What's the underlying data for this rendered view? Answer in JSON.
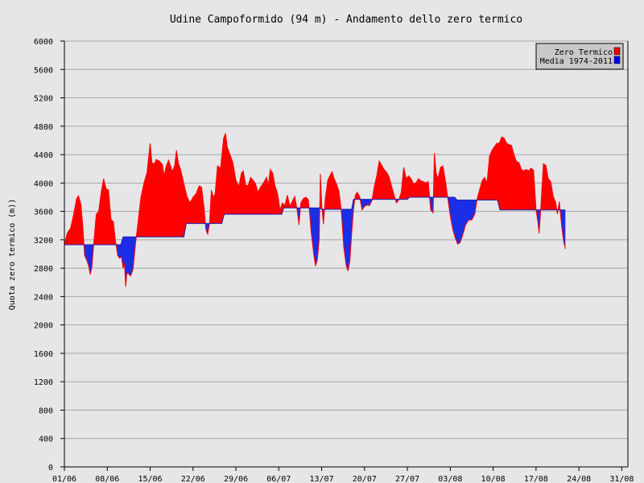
{
  "chart_data": {
    "type": "area",
    "title": "Udine Campoformido (94 m) - Andamento dello zero termico",
    "xlabel": "",
    "ylabel": "Quota zero termico (m))",
    "ylim": [
      0,
      6000
    ],
    "yticks": [
      0,
      400,
      800,
      1200,
      1600,
      2000,
      2400,
      2800,
      3200,
      3600,
      4000,
      4400,
      4800,
      5200,
      5600,
      6000
    ],
    "xlim_days": [
      0,
      92
    ],
    "xticks": [
      {
        "label": "01/06",
        "day": 0
      },
      {
        "label": "08/06",
        "day": 7
      },
      {
        "label": "15/06",
        "day": 14
      },
      {
        "label": "22/06",
        "day": 21
      },
      {
        "label": "29/06",
        "day": 28
      },
      {
        "label": "06/07",
        "day": 35
      },
      {
        "label": "13/07",
        "day": 42
      },
      {
        "label": "20/07",
        "day": 49
      },
      {
        "label": "27/07",
        "day": 56
      },
      {
        "label": "03/08",
        "day": 63
      },
      {
        "label": "10/08",
        "day": 70
      },
      {
        "label": "17/08",
        "day": 77
      },
      {
        "label": "24/08",
        "day": 84
      },
      {
        "label": "31/08",
        "day": 91
      }
    ],
    "grid": true,
    "legend_position": "top-right",
    "colors": {
      "above": "#ff0000",
      "below": "#1a2ee8",
      "line": "#2222aa",
      "grid": "#a6a6a6",
      "legend_above": "#ee0000",
      "legend_below": "#0000ee"
    },
    "series": [
      {
        "name": "Zero Termico",
        "points": [
          [
            0.0,
            3140
          ],
          [
            0.5,
            3300
          ],
          [
            1.0,
            3360
          ],
          [
            1.5,
            3550
          ],
          [
            2.0,
            3780
          ],
          [
            2.3,
            3820
          ],
          [
            2.7,
            3700
          ],
          [
            3.0,
            3400
          ],
          [
            3.3,
            2980
          ],
          [
            3.7,
            2900
          ],
          [
            4.0,
            2820
          ],
          [
            4.2,
            2710
          ],
          [
            4.5,
            2820
          ],
          [
            4.8,
            3150
          ],
          [
            5.2,
            3560
          ],
          [
            5.6,
            3600
          ],
          [
            6.0,
            3870
          ],
          [
            6.4,
            4060
          ],
          [
            6.8,
            3920
          ],
          [
            7.2,
            3900
          ],
          [
            7.6,
            3490
          ],
          [
            8.0,
            3450
          ],
          [
            8.3,
            3200
          ],
          [
            8.7,
            2980
          ],
          [
            9.0,
            2940
          ],
          [
            9.3,
            2960
          ],
          [
            9.6,
            2800
          ],
          [
            9.8,
            2870
          ],
          [
            10.0,
            2540
          ],
          [
            10.2,
            2730
          ],
          [
            10.5,
            2720
          ],
          [
            10.8,
            2690
          ],
          [
            11.2,
            2780
          ],
          [
            11.6,
            3140
          ],
          [
            12.0,
            3430
          ],
          [
            12.5,
            3800
          ],
          [
            13.0,
            4000
          ],
          [
            13.5,
            4150
          ],
          [
            14.0,
            4560
          ],
          [
            14.3,
            4280
          ],
          [
            14.7,
            4270
          ],
          [
            15.0,
            4330
          ],
          [
            15.5,
            4310
          ],
          [
            16.0,
            4260
          ],
          [
            16.3,
            4100
          ],
          [
            16.6,
            4230
          ],
          [
            17.0,
            4320
          ],
          [
            17.3,
            4250
          ],
          [
            17.6,
            4160
          ],
          [
            18.0,
            4240
          ],
          [
            18.3,
            4460
          ],
          [
            18.6,
            4280
          ],
          [
            19.0,
            4180
          ],
          [
            19.5,
            3990
          ],
          [
            20.0,
            3810
          ],
          [
            20.5,
            3720
          ],
          [
            21.0,
            3800
          ],
          [
            21.5,
            3850
          ],
          [
            22.0,
            3960
          ],
          [
            22.4,
            3940
          ],
          [
            22.8,
            3650
          ],
          [
            23.1,
            3340
          ],
          [
            23.4,
            3280
          ],
          [
            23.7,
            3430
          ],
          [
            24.0,
            3900
          ],
          [
            24.3,
            3800
          ],
          [
            24.6,
            3840
          ],
          [
            25.0,
            4240
          ],
          [
            25.5,
            4210
          ],
          [
            26.0,
            4630
          ],
          [
            26.3,
            4700
          ],
          [
            26.6,
            4500
          ],
          [
            27.0,
            4410
          ],
          [
            27.5,
            4290
          ],
          [
            28.0,
            4040
          ],
          [
            28.5,
            3950
          ],
          [
            28.9,
            4140
          ],
          [
            29.2,
            4170
          ],
          [
            29.6,
            3970
          ],
          [
            30.0,
            3960
          ],
          [
            30.4,
            4080
          ],
          [
            30.8,
            4040
          ],
          [
            31.2,
            3990
          ],
          [
            31.6,
            3870
          ],
          [
            32.0,
            3940
          ],
          [
            32.5,
            4000
          ],
          [
            33.0,
            4080
          ],
          [
            33.3,
            3970
          ],
          [
            33.6,
            4190
          ],
          [
            34.0,
            4140
          ],
          [
            34.4,
            3960
          ],
          [
            34.8,
            3850
          ],
          [
            35.2,
            3620
          ],
          [
            35.6,
            3720
          ],
          [
            36.0,
            3680
          ],
          [
            36.4,
            3830
          ],
          [
            36.8,
            3670
          ],
          [
            37.2,
            3740
          ],
          [
            37.6,
            3810
          ],
          [
            38.0,
            3620
          ],
          [
            38.3,
            3410
          ],
          [
            38.6,
            3720
          ],
          [
            39.0,
            3780
          ],
          [
            39.4,
            3800
          ],
          [
            39.8,
            3770
          ],
          [
            40.0,
            3620
          ],
          [
            40.3,
            3300
          ],
          [
            40.7,
            3000
          ],
          [
            41.0,
            2830
          ],
          [
            41.3,
            2920
          ],
          [
            41.6,
            3200
          ],
          [
            41.8,
            4130
          ],
          [
            42.0,
            3700
          ],
          [
            42.3,
            3420
          ],
          [
            42.6,
            3780
          ],
          [
            43.0,
            4040
          ],
          [
            43.4,
            4110
          ],
          [
            43.7,
            4160
          ],
          [
            44.0,
            4070
          ],
          [
            44.4,
            3990
          ],
          [
            44.8,
            3890
          ],
          [
            45.2,
            3620
          ],
          [
            45.6,
            3100
          ],
          [
            46.0,
            2840
          ],
          [
            46.3,
            2760
          ],
          [
            46.6,
            2900
          ],
          [
            46.9,
            3280
          ],
          [
            47.2,
            3620
          ],
          [
            47.5,
            3830
          ],
          [
            47.8,
            3870
          ],
          [
            48.2,
            3810
          ],
          [
            48.6,
            3620
          ],
          [
            49.0,
            3670
          ],
          [
            49.4,
            3690
          ],
          [
            49.8,
            3680
          ],
          [
            50.2,
            3750
          ],
          [
            50.6,
            3950
          ],
          [
            51.0,
            4100
          ],
          [
            51.4,
            4310
          ],
          [
            51.8,
            4250
          ],
          [
            52.2,
            4190
          ],
          [
            52.6,
            4150
          ],
          [
            53.0,
            4090
          ],
          [
            53.4,
            3960
          ],
          [
            53.8,
            3840
          ],
          [
            54.2,
            3720
          ],
          [
            54.6,
            3760
          ],
          [
            55.0,
            3870
          ],
          [
            55.4,
            4220
          ],
          [
            55.8,
            4060
          ],
          [
            56.2,
            4100
          ],
          [
            56.6,
            4060
          ],
          [
            57.0,
            3990
          ],
          [
            57.4,
            4000
          ],
          [
            57.8,
            4060
          ],
          [
            58.2,
            4030
          ],
          [
            58.6,
            4020
          ],
          [
            59.0,
            4000
          ],
          [
            59.4,
            4020
          ],
          [
            59.8,
            3620
          ],
          [
            60.2,
            3580
          ],
          [
            60.4,
            4420
          ],
          [
            60.7,
            4140
          ],
          [
            61.0,
            4060
          ],
          [
            61.4,
            4220
          ],
          [
            61.8,
            4240
          ],
          [
            62.2,
            4030
          ],
          [
            62.6,
            3780
          ],
          [
            63.0,
            3540
          ],
          [
            63.4,
            3350
          ],
          [
            63.8,
            3230
          ],
          [
            64.2,
            3140
          ],
          [
            64.6,
            3160
          ],
          [
            65.0,
            3260
          ],
          [
            65.5,
            3410
          ],
          [
            66.0,
            3480
          ],
          [
            66.5,
            3480
          ],
          [
            67.0,
            3560
          ],
          [
            67.4,
            3780
          ],
          [
            67.8,
            3910
          ],
          [
            68.2,
            4030
          ],
          [
            68.6,
            4080
          ],
          [
            69.0,
            4000
          ],
          [
            69.4,
            4370
          ],
          [
            69.8,
            4460
          ],
          [
            70.2,
            4510
          ],
          [
            70.6,
            4560
          ],
          [
            71.0,
            4560
          ],
          [
            71.4,
            4650
          ],
          [
            71.8,
            4630
          ],
          [
            72.2,
            4560
          ],
          [
            72.6,
            4540
          ],
          [
            73.0,
            4530
          ],
          [
            73.4,
            4400
          ],
          [
            73.8,
            4300
          ],
          [
            74.2,
            4290
          ],
          [
            74.6,
            4190
          ],
          [
            75.0,
            4170
          ],
          [
            75.4,
            4190
          ],
          [
            75.8,
            4170
          ],
          [
            76.2,
            4210
          ],
          [
            76.6,
            4180
          ],
          [
            77.0,
            3620
          ],
          [
            77.3,
            3450
          ],
          [
            77.5,
            3290
          ],
          [
            77.8,
            3680
          ],
          [
            78.2,
            4270
          ],
          [
            78.6,
            4250
          ],
          [
            79.0,
            4060
          ],
          [
            79.4,
            4020
          ],
          [
            79.8,
            3810
          ],
          [
            80.2,
            3730
          ],
          [
            80.5,
            3560
          ],
          [
            80.8,
            3740
          ],
          [
            81.2,
            3380
          ],
          [
            81.5,
            3180
          ],
          [
            81.8,
            3070
          ]
        ]
      },
      {
        "name": "Media 1974-2011",
        "points": [
          [
            0.0,
            3130
          ],
          [
            3.7,
            3130
          ],
          [
            4.0,
            3130
          ],
          [
            9.2,
            3130
          ],
          [
            9.6,
            3240
          ],
          [
            13.6,
            3240
          ],
          [
            13.9,
            3240
          ],
          [
            19.5,
            3240
          ],
          [
            19.9,
            3430
          ],
          [
            25.7,
            3430
          ],
          [
            26.1,
            3560
          ],
          [
            35.5,
            3560
          ],
          [
            35.8,
            3650
          ],
          [
            41.7,
            3650
          ],
          [
            42.0,
            3630
          ],
          [
            46.9,
            3630
          ],
          [
            47.2,
            3770
          ],
          [
            56.0,
            3770
          ],
          [
            56.3,
            3800
          ],
          [
            63.7,
            3800
          ],
          [
            64.1,
            3760
          ],
          [
            70.7,
            3760
          ],
          [
            71.1,
            3620
          ],
          [
            81.8,
            3620
          ]
        ]
      }
    ]
  }
}
